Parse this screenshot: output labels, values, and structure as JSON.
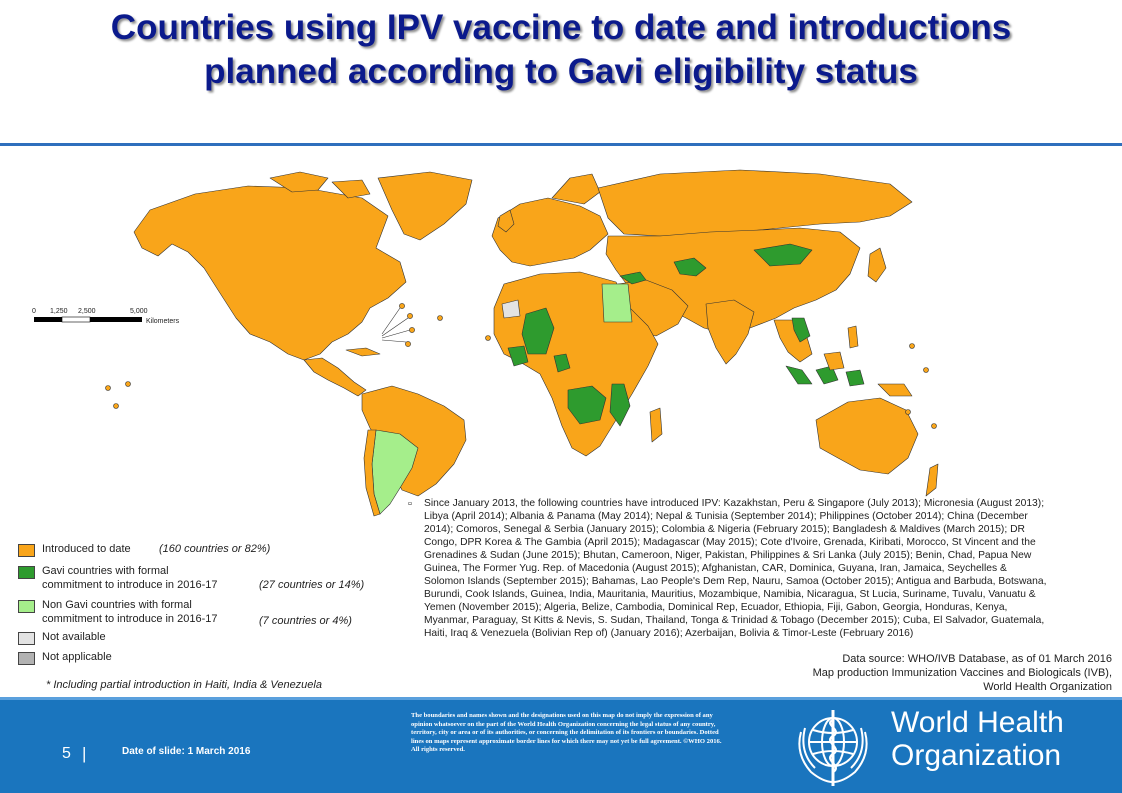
{
  "title": {
    "line1": "Countries using IPV vaccine to date and introductions",
    "line2": "planned according to Gavi eligibility status"
  },
  "colors": {
    "introduced": "#F9A51A",
    "gavi_formal": "#2E9B2E",
    "non_gavi_formal": "#A5EE8B",
    "not_available": "#E3E3E3",
    "not_applicable": "#B2B2B2",
    "title": "#0B1A8C",
    "footer": "#1A75BE"
  },
  "scale_bar": {
    "ticks": [
      "0",
      "1,250",
      "2,500",
      "5,000"
    ],
    "unit": "Kilometers"
  },
  "legend": [
    {
      "key": "introduced",
      "label": "Introduced to date",
      "stat": "(160 countries or 82%)"
    },
    {
      "key": "gavi_formal",
      "label_line1": "Gavi countries with formal",
      "label_line2": "commitment to introduce in 2016-17",
      "stat": "(27 countries or 14%)"
    },
    {
      "key": "non_gavi_formal",
      "label_line1": "Non Gavi countries with formal",
      "label_line2": "commitment to introduce in 2016-17",
      "stat": "(7 countries or 4%)"
    },
    {
      "key": "not_available",
      "label": "Not available"
    },
    {
      "key": "not_applicable",
      "label": "Not applicable"
    }
  ],
  "footnote": "* Including partial introduction in Haiti, India & Venezuela",
  "introductions_note": "Since January 2013, the following countries have introduced IPV: Kazakhstan, Peru & Singapore (July 2013); Micronesia (August 2013); Libya (April 2014); Albania & Panama (May 2014); Nepal & Tunisia (September 2014); Philippines (October 2014); China (December 2014); Comoros, Senegal & Serbia (January 2015); Colombia & Nigeria (February 2015); Bangladesh & Maldives (March 2015); DR Congo, DPR Korea & The Gambia (April 2015); Madagascar (May 2015); Cote d'Ivoire, Grenada, Kiribati, Morocco, St Vincent and the Grenadines & Sudan (June 2015); Bhutan, Cameroon, Niger, Pakistan, Philippines & Sri Lanka (July 2015); Benin, Chad, Papua New Guinea, The Former Yug. Rep. of Macedonia (August 2015); Afghanistan, CAR, Dominica, Guyana, Iran, Jamaica, Seychelles & Solomon Islands (September 2015); Bahamas, Lao People's Dem Rep, Nauru, Samoa (October 2015); Antigua and Barbuda, Botswana, Burundi, Cook Islands, Guinea, India, Mauritania, Mauritius, Mozambique, Namibia, Nicaragua, St Lucia, Suriname, Tuvalu, Vanuatu & Yemen (November 2015); Algeria, Belize, Cambodia, Dominical Rep, Ecuador, Ethiopia, Fiji, Gabon, Georgia, Honduras, Kenya, Myanmar, Paraguay, St Kitts & Nevis, S. Sudan, Thailand, Tonga & Trinidad & Tobago (December 2015); Cuba, El Salvador, Guatemala, Haiti, Iraq & Venezuela (Bolivian Rep of) (January 2016); Azerbaijan, Bolivia & Timor-Leste (February 2016)",
  "source": {
    "line1": "Data source: WHO/IVB Database, as of 01 March 2016",
    "line2": "Map production Immunization Vaccines and Biologicals (IVB),",
    "line3": "World Health Organization"
  },
  "footer": {
    "slide_number": "5",
    "separator": "|",
    "date": "Date of slide: 1 March 2016",
    "disclaimer": "The boundaries and names shown and the designations used on this map do not imply the expression of any opinion whatsoever on the part of the World Health Organization concerning the legal status of any country, territory, city or area or of its authorities, or concerning the delimitation of its frontiers or boundaries. Dotted lines on maps represent approximate border lines for which there may not yet be full agreement. ©WHO 2016. All rights reserved.",
    "who_line1": "World Health",
    "who_line2": "Organization"
  }
}
